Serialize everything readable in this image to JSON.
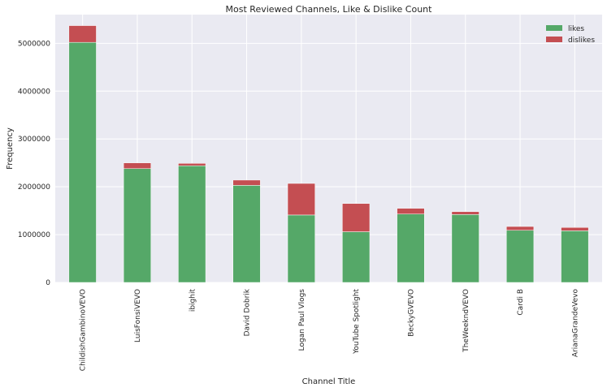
{
  "chart_data": {
    "type": "bar",
    "stacked": true,
    "title": "Most Reviewed Channels, Like & Dislike Count",
    "xlabel": "Channel Title",
    "ylabel": "Frequency",
    "ylim": [
      0,
      5600000
    ],
    "yticks": [
      0,
      1000000,
      2000000,
      3000000,
      4000000,
      5000000
    ],
    "ytick_labels": [
      "0",
      "1000000",
      "2000000",
      "3000000",
      "4000000",
      "5000000"
    ],
    "grid": true,
    "legend_position": "top-right",
    "categories": [
      "ChildishGambinoVEVO",
      "LuisFonsiVEVO",
      "ibighit",
      "David Dobrik",
      "Logan Paul Vlogs",
      "YouTube Spotlight",
      "BeckyGVEVO",
      "TheWeekndVEVO",
      "Cardi B",
      "ArianaGrandeVevo"
    ],
    "series": [
      {
        "name": "likes",
        "color": "#55a868",
        "values": [
          5020000,
          2380000,
          2440000,
          2030000,
          1410000,
          1060000,
          1430000,
          1420000,
          1090000,
          1080000
        ]
      },
      {
        "name": "dislikes",
        "color": "#c44e52",
        "values": [
          350000,
          120000,
          50000,
          110000,
          660000,
          590000,
          120000,
          60000,
          80000,
          70000
        ]
      }
    ]
  }
}
